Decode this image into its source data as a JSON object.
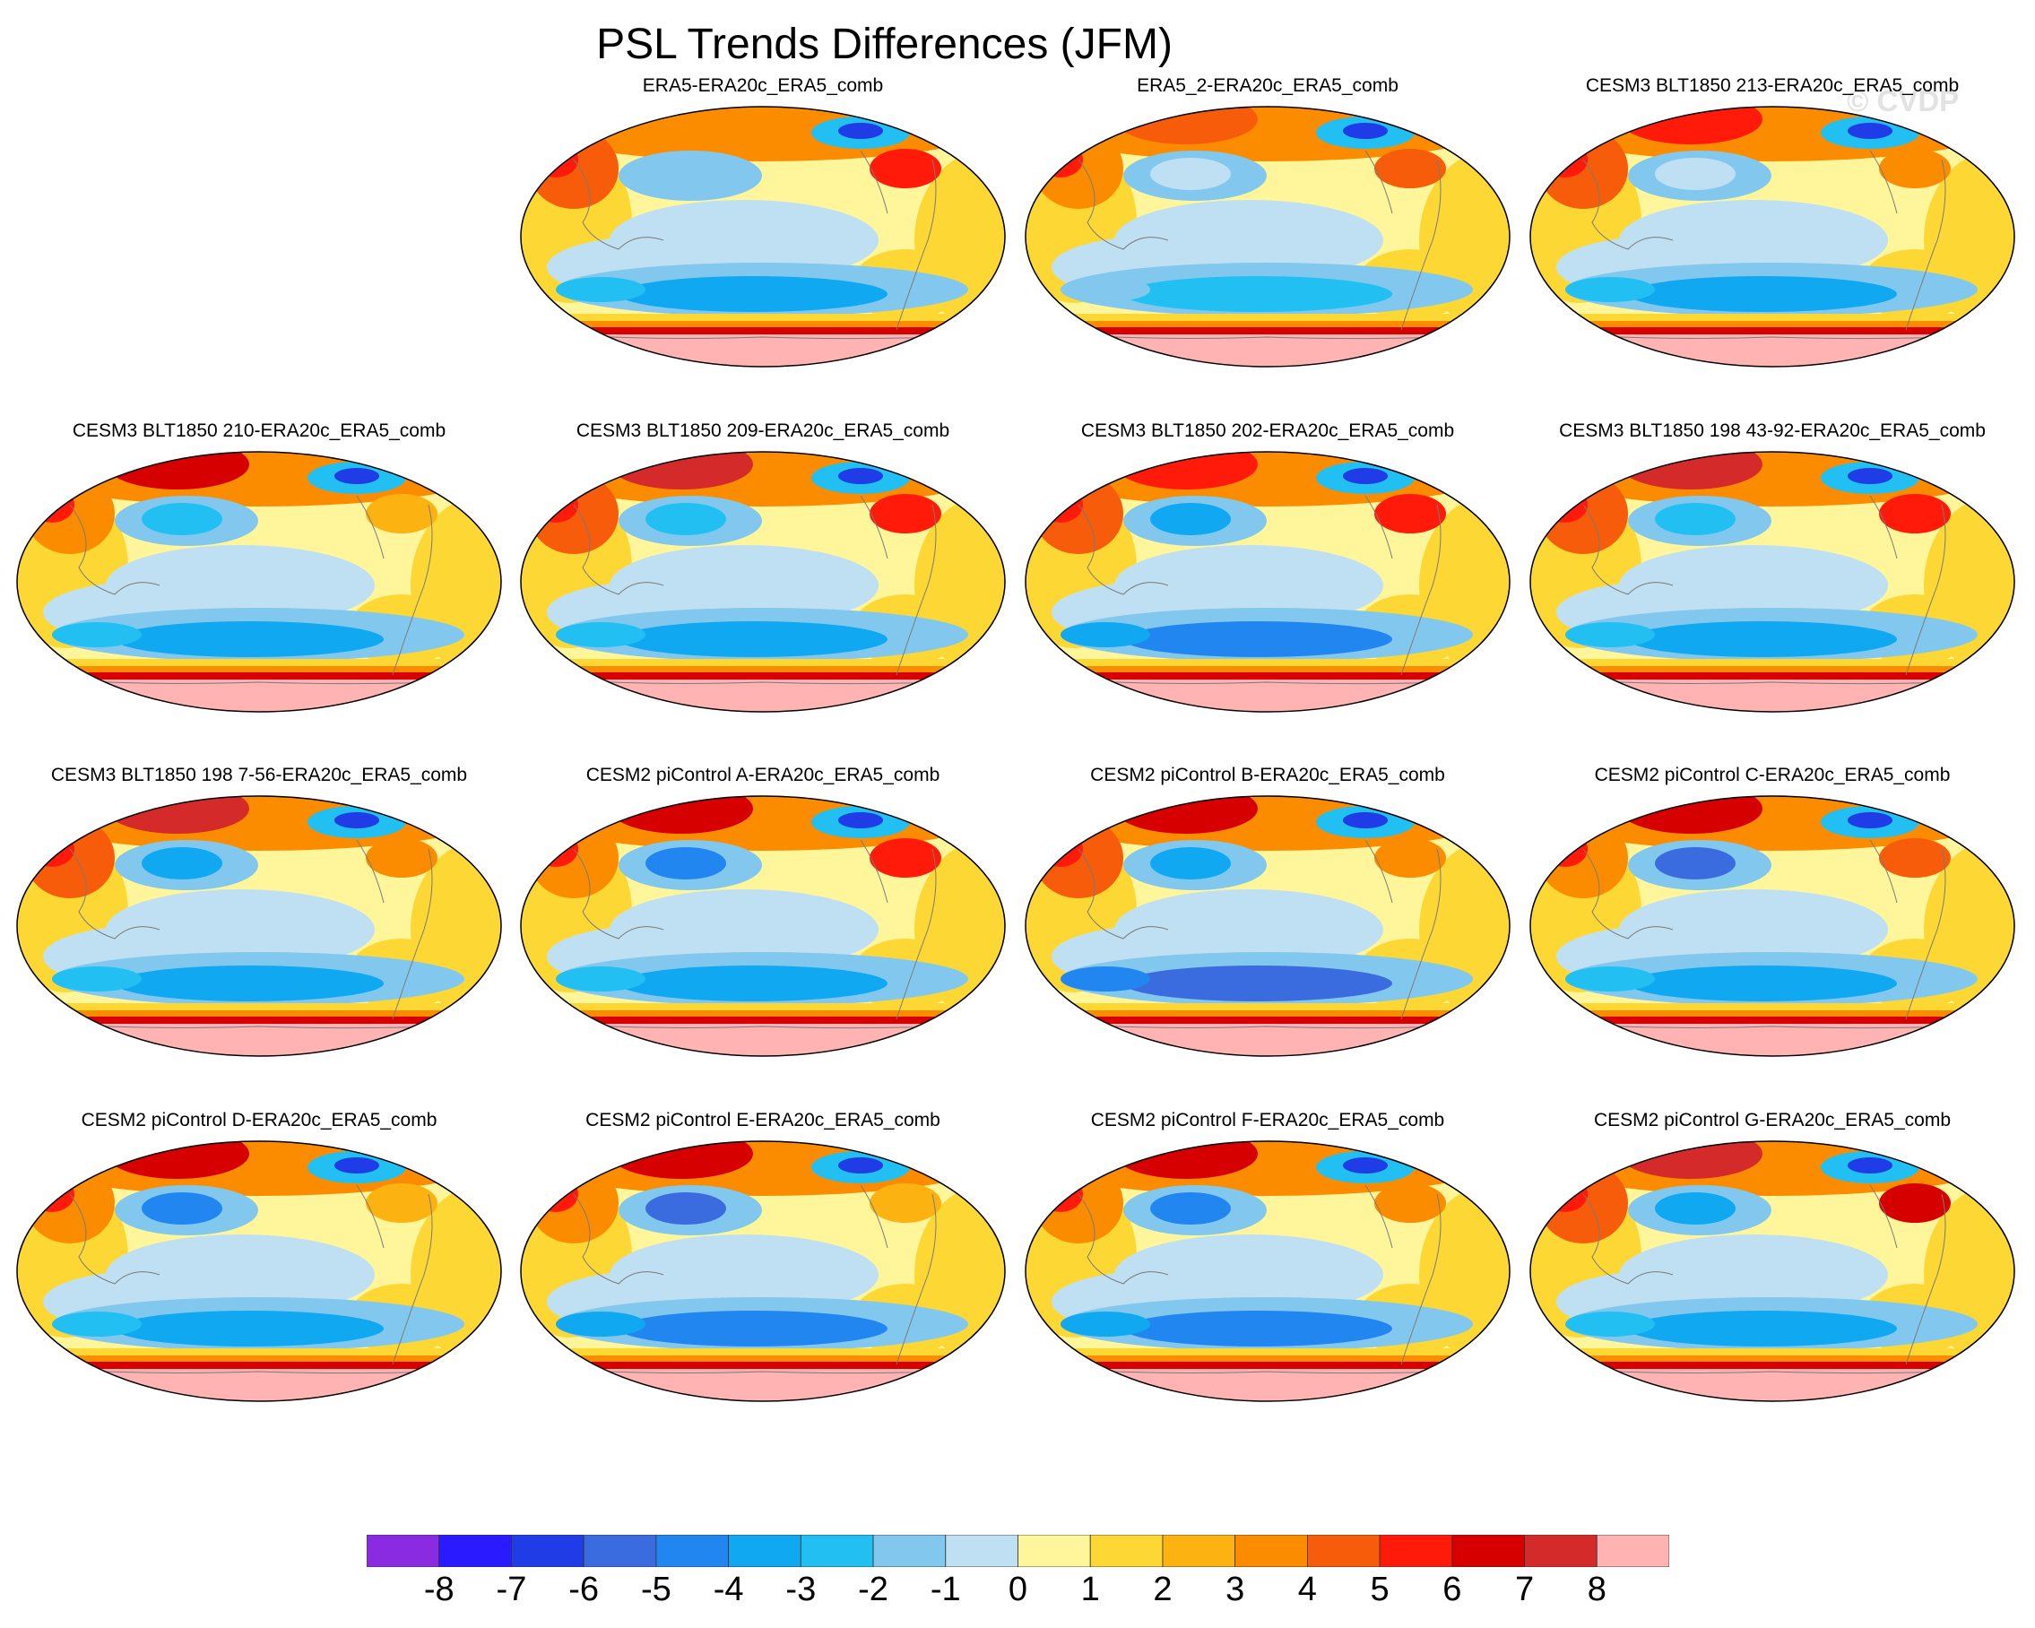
{
  "title": "PSL Trends Differences (JFM)",
  "watermark": "© CVDP",
  "panels": [
    {
      "title": "ERA5-ERA20c_ERA5_comb",
      "row": 0,
      "col": 1
    },
    {
      "title": "ERA5_2-ERA20c_ERA5_comb",
      "row": 0,
      "col": 2
    },
    {
      "title": "CESM3 BLT1850 213-ERA20c_ERA5_comb",
      "row": 0,
      "col": 3
    },
    {
      "title": "CESM3 BLT1850 210-ERA20c_ERA5_comb",
      "row": 1,
      "col": 0
    },
    {
      "title": "CESM3 BLT1850 209-ERA20c_ERA5_comb",
      "row": 1,
      "col": 1
    },
    {
      "title": "CESM3 BLT1850 202-ERA20c_ERA5_comb",
      "row": 1,
      "col": 2
    },
    {
      "title": "CESM3 BLT1850 198 43-92-ERA20c_ERA5_comb",
      "row": 1,
      "col": 3
    },
    {
      "title": "CESM3 BLT1850 198 7-56-ERA20c_ERA5_comb",
      "row": 2,
      "col": 0
    },
    {
      "title": "CESM2 piControl A-ERA20c_ERA5_comb",
      "row": 2,
      "col": 1
    },
    {
      "title": "CESM2 piControl B-ERA20c_ERA5_comb",
      "row": 2,
      "col": 2
    },
    {
      "title": "CESM2 piControl C-ERA20c_ERA5_comb",
      "row": 2,
      "col": 3
    },
    {
      "title": "CESM2 piControl D-ERA20c_ERA5_comb",
      "row": 3,
      "col": 0
    },
    {
      "title": "CESM2 piControl E-ERA20c_ERA5_comb",
      "row": 3,
      "col": 1
    },
    {
      "title": "CESM2 piControl F-ERA20c_ERA5_comb",
      "row": 3,
      "col": 2
    },
    {
      "title": "CESM2 piControl G-ERA20c_ERA5_comb",
      "row": 3,
      "col": 3
    }
  ],
  "colorbar": {
    "labels": [
      "-8",
      "-7",
      "-6",
      "-5",
      "-4",
      "-3",
      "-2",
      "-1",
      "0",
      "1",
      "2",
      "3",
      "4",
      "5",
      "6",
      "7",
      "8"
    ],
    "colors": [
      "#8a2be2",
      "#2a1aff",
      "#1f3ce6",
      "#3a6ce0",
      "#2186f0",
      "#10a8f0",
      "#22c0f2",
      "#82c8ee",
      "#bfe0f2",
      "#fff59a",
      "#fdd835",
      "#fcb311",
      "#fb8c00",
      "#f75c0a",
      "#ff1a0a",
      "#d60000",
      "#d42a2a",
      "#ffb3b3"
    ]
  }
}
